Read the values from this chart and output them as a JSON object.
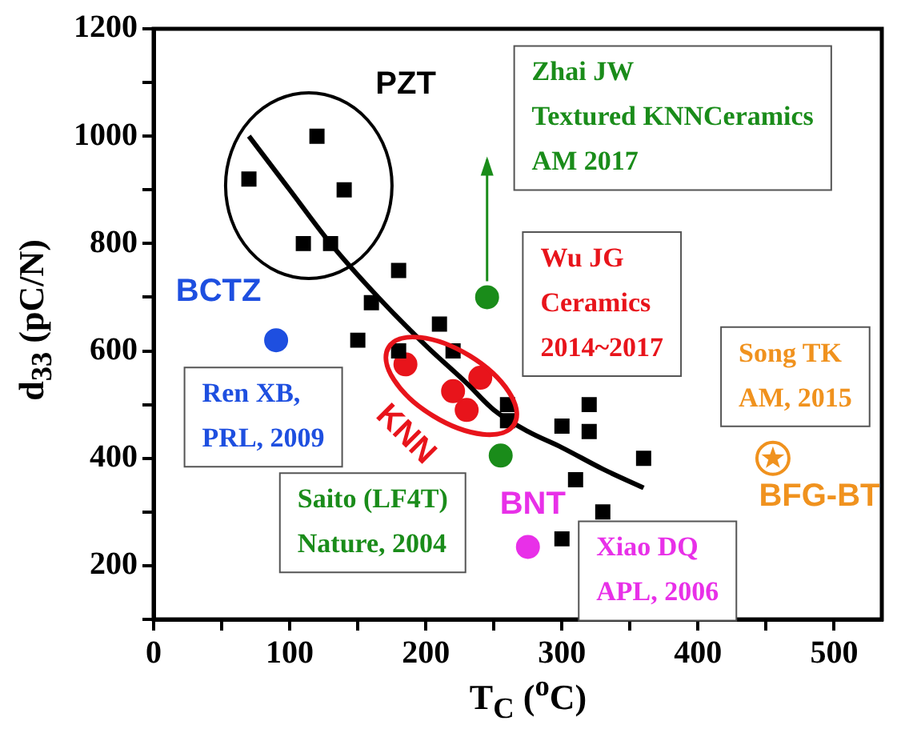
{
  "chart_data": {
    "type": "scatter",
    "xlabel": "T$_{C}$ ($^{o}$C)",
    "ylabel": "d$_{33}$ (pC/N)",
    "xlim": [
      0,
      535
    ],
    "ylim": [
      100,
      1200
    ],
    "xticks": [
      0,
      {
        "value": 50,
        "label": null
      },
      100,
      {
        "value": 150,
        "label": null
      },
      200,
      {
        "value": 250,
        "label": null
      },
      300,
      {
        "value": 350,
        "label": null
      },
      400,
      {
        "value": 450,
        "label": null
      },
      500
    ],
    "yticks": [
      {
        "value": 100,
        "label": null
      },
      200,
      {
        "value": 300,
        "label": null
      },
      400,
      {
        "value": 500,
        "label": null
      },
      600,
      {
        "value": 700,
        "label": null
      },
      800,
      {
        "value": 900,
        "label": null
      },
      1000,
      {
        "value": 1100,
        "label": null
      },
      1200
    ],
    "grid": false,
    "series": [
      {
        "name": "PZT",
        "color": "#000000",
        "marker": "square",
        "x": [
          70,
          120,
          140,
          110,
          130,
          180,
          160,
          150,
          210,
          180,
          220,
          260,
          260,
          300,
          320,
          320,
          360,
          310,
          330,
          300
        ],
        "values": [
          920,
          1000,
          900,
          800,
          800,
          750,
          690,
          620,
          650,
          600,
          600,
          500,
          470,
          460,
          500,
          450,
          400,
          360,
          300,
          250
        ]
      },
      {
        "type": "line",
        "color": "#000000",
        "marker": "none",
        "x": [
          70,
          100,
          130,
          165,
          200,
          230,
          250,
          275,
          300,
          330,
          360
        ],
        "values": [
          1000,
          900,
          800,
          700,
          610,
          540,
          490,
          450,
          420,
          380,
          345
        ]
      },
      {
        "name": "KNN",
        "color": "#e8141b",
        "marker": "circle",
        "x": [
          185,
          220,
          230,
          240
        ],
        "values": [
          575,
          525,
          490,
          550
        ]
      },
      {
        "color": "#1a8c1a",
        "marker": "circle",
        "x": [
          245
        ],
        "values": [
          700
        ]
      },
      {
        "name": "BCTZ",
        "color": "#1e4fe0",
        "marker": "circle",
        "x": [
          90
        ],
        "values": [
          620
        ]
      },
      {
        "color": "#1a8c1a",
        "marker": "circle",
        "x": [
          255
        ],
        "values": [
          405
        ]
      },
      {
        "name": "BNT",
        "color": "#e830e8",
        "marker": "circle",
        "x": [
          275
        ],
        "values": [
          235
        ]
      },
      {
        "name": "BFG-BT",
        "color": "#f0921e",
        "marker": "star",
        "x": [
          455
        ],
        "values": [
          400
        ]
      }
    ],
    "annotations": [
      "Zhai JW\nTextured KNNCeramics\nAM 2017",
      {
        "text": "Wu JG\nCeramics\n2014~2017",
        "x": 240,
        "y": 550
      },
      {
        "text": "Ren XB,\nPRL, 2009",
        "x": 90,
        "y": 620
      },
      {
        "text": "Saito (LF4T)\nNature, 2004",
        "x": 255,
        "y": 405
      },
      {
        "text": "Xiao DQ\nAPL, 2006",
        "x": 275,
        "y": 235
      },
      {
        "text": "Song TK\nAM, 2015",
        "x": 455,
        "y": 400
      }
    ]
  }
}
